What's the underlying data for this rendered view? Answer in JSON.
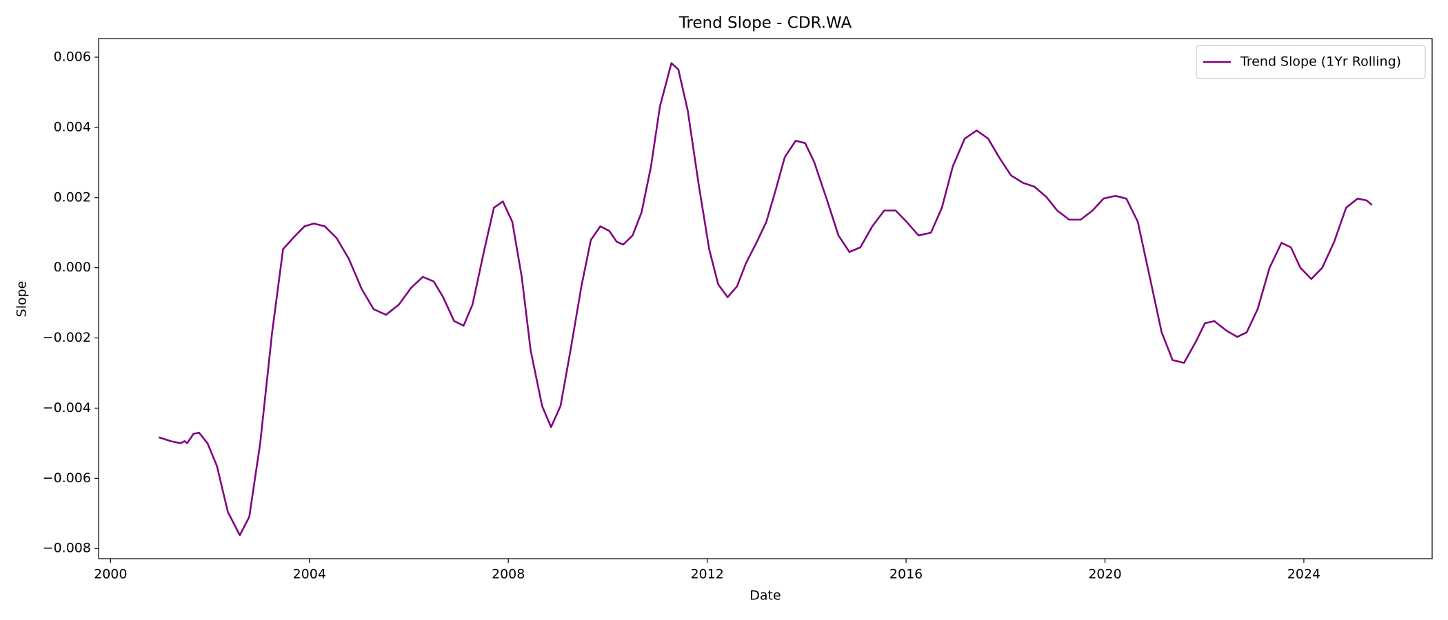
{
  "chart_data": {
    "type": "line",
    "title": "Trend Slope - CDR.WA",
    "x_label": "Date",
    "y_label": "Slope",
    "x": [
      2000.97,
      2001.21,
      2001.41,
      2001.49,
      2001.54,
      2001.67,
      2001.78,
      2001.95,
      2002.14,
      2002.36,
      2002.6,
      2002.79,
      2003.01,
      2003.25,
      2003.47,
      2003.72,
      2003.9,
      2004.09,
      2004.31,
      2004.55,
      2004.79,
      2005.05,
      2005.29,
      2005.54,
      2005.8,
      2006.04,
      2006.28,
      2006.5,
      2006.69,
      2006.91,
      2007.1,
      2007.28,
      2007.52,
      2007.71,
      2007.89,
      2008.08,
      2008.27,
      2008.45,
      2008.68,
      2008.86,
      2009.05,
      2009.25,
      2009.47,
      2009.66,
      2009.85,
      2010.03,
      2010.18,
      2010.31,
      2010.5,
      2010.68,
      2010.87,
      2011.05,
      2011.28,
      2011.42,
      2011.61,
      2011.83,
      2012.04,
      2012.22,
      2012.41,
      2012.6,
      2012.78,
      2013.0,
      2013.19,
      2013.38,
      2013.56,
      2013.78,
      2013.97,
      2014.15,
      2014.4,
      2014.64,
      2014.86,
      2015.08,
      2015.32,
      2015.56,
      2015.79,
      2016.01,
      2016.25,
      2016.5,
      2016.72,
      2016.94,
      2017.18,
      2017.42,
      2017.65,
      2017.87,
      2018.11,
      2018.35,
      2018.58,
      2018.82,
      2019.04,
      2019.28,
      2019.51,
      2019.75,
      2019.97,
      2020.21,
      2020.43,
      2020.66,
      2020.9,
      2021.14,
      2021.36,
      2021.59,
      2021.83,
      2022.01,
      2022.2,
      2022.44,
      2022.66,
      2022.85,
      2023.07,
      2023.31,
      2023.55,
      2023.74,
      2023.93,
      2024.15,
      2024.37,
      2024.61,
      2024.85,
      2025.08,
      2025.26,
      2025.37
    ],
    "series": [
      {
        "name": "Trend Slope (1Yr Rolling)",
        "color": "#800080",
        "values": [
          -0.00483,
          -0.00494,
          -0.005,
          -0.00494,
          -0.005,
          -0.00473,
          -0.0047,
          -0.005,
          -0.00565,
          -0.00696,
          -0.00762,
          -0.0071,
          -0.005,
          -0.00184,
          0.00053,
          0.00092,
          0.00118,
          0.00126,
          0.00118,
          0.00084,
          0.00026,
          -0.0006,
          -0.00118,
          -0.00134,
          -0.00105,
          -0.00058,
          -0.00026,
          -0.00039,
          -0.00084,
          -0.00152,
          -0.00165,
          -0.00105,
          0.00053,
          0.00171,
          0.00189,
          0.00131,
          -0.00026,
          -0.00236,
          -0.00394,
          -0.00454,
          -0.00394,
          -0.00236,
          -0.00053,
          0.00079,
          0.00118,
          0.00105,
          0.00074,
          0.00066,
          0.00092,
          0.00158,
          0.00289,
          0.0046,
          0.00583,
          0.00565,
          0.00447,
          0.00236,
          0.00053,
          -0.00047,
          -0.00084,
          -0.00053,
          0.00013,
          0.00074,
          0.00131,
          0.00223,
          0.00315,
          0.00362,
          0.00355,
          0.00302,
          0.00197,
          0.00092,
          0.00045,
          0.00058,
          0.00118,
          0.00163,
          0.00163,
          0.00131,
          0.00092,
          0.001,
          0.00171,
          0.00289,
          0.00368,
          0.00391,
          0.00368,
          0.00315,
          0.00263,
          0.00242,
          0.00231,
          0.00202,
          0.00163,
          0.00137,
          0.00137,
          0.00163,
          0.00197,
          0.00205,
          0.00197,
          0.00131,
          -0.00026,
          -0.00184,
          -0.00263,
          -0.00271,
          -0.0021,
          -0.00158,
          -0.00152,
          -0.00179,
          -0.00197,
          -0.00184,
          -0.00118,
          0,
          0.00071,
          0.00058,
          0,
          -0.00032,
          0,
          0.00074,
          0.00171,
          0.00197,
          0.00192,
          0.00179
        ]
      }
    ],
    "xlim": [
      1999.76,
      2026.58
    ],
    "xticks": [
      2000,
      2004,
      2008,
      2012,
      2016,
      2020,
      2024
    ],
    "ylim": [
      -0.00829,
      0.00653
    ],
    "yticks": [
      {
        "value": -0.008,
        "label": "−0.008"
      },
      {
        "value": -0.006,
        "label": "−0.006"
      },
      {
        "value": -0.004,
        "label": "−0.004"
      },
      {
        "value": -0.002,
        "label": "−0.002"
      },
      {
        "value": 0,
        "label": "0.000"
      },
      0.002,
      0.004,
      0.006
    ],
    "legend": "upper right"
  }
}
